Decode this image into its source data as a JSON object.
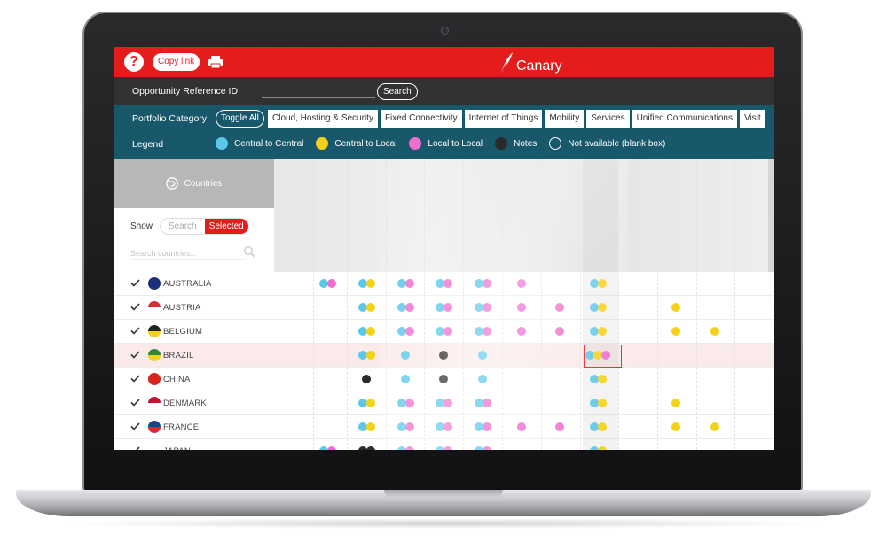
{
  "app": {
    "name": "Canary"
  },
  "toolbar": {
    "help_icon": "question-circle-icon",
    "copy_link_label": "Copy link",
    "print_icon": "printer-icon"
  },
  "reference": {
    "label": "Opportunity Reference ID",
    "value": "",
    "search_label": "Search"
  },
  "portfolio": {
    "label": "Portfolio Category",
    "toggle_all_label": "Toggle All",
    "tabs": [
      "Cloud, Hosting & Security",
      "Fixed Connectivity",
      "Internet of Things",
      "Mobility",
      "Services",
      "Unified Communications",
      "Visit"
    ]
  },
  "legend": {
    "label": "Legend",
    "items": [
      {
        "label": "Central to Central",
        "color": "#5bc8ea"
      },
      {
        "label": "Central to Local",
        "color": "#f5d21a"
      },
      {
        "label": "Local to Local",
        "color": "#ee6fcf"
      },
      {
        "label": "Notes",
        "color": "#2b2b2b"
      },
      {
        "label": "Not available (blank box)",
        "color": "transparent"
      }
    ]
  },
  "sidebar": {
    "header_label": "Countries",
    "globe_icon": "globe-icon",
    "show_label": "Show",
    "show_options": [
      "Search",
      "Selected"
    ],
    "show_selected": "Selected",
    "search_placeholder": "Search countries..."
  },
  "colors": {
    "brand": "#e51c1c",
    "dark_bar": "#323232",
    "teal_bar": "#19576b",
    "c": "#5bc8ea",
    "y": "#f5d21a",
    "p": "#ee6fcf",
    "n": "#2b2b2b"
  },
  "countries": [
    {
      "name": "AUSTRALIA",
      "checked": true
    },
    {
      "name": "AUSTRIA",
      "checked": true
    },
    {
      "name": "BELGIUM",
      "checked": true
    },
    {
      "name": "BRAZIL",
      "checked": true,
      "highlighted": true
    },
    {
      "name": "CHINA",
      "checked": true
    },
    {
      "name": "DENMARK",
      "checked": true
    },
    {
      "name": "FRANCE",
      "checked": true
    },
    {
      "name": "JAPAN",
      "checked": true
    }
  ],
  "matrix": [
    [
      "cp",
      "cy",
      "cp",
      "cp",
      "cp",
      "p",
      "",
      "cy",
      "",
      "",
      ""
    ],
    [
      "",
      "cy",
      "cp",
      "cp",
      "cp",
      "p",
      "p",
      "cy",
      "",
      "y",
      ""
    ],
    [
      "",
      "cy",
      "cp",
      "cp",
      "cp",
      "p",
      "p",
      "cy",
      "",
      "y",
      "y"
    ],
    [
      "",
      "cy",
      "c",
      "n",
      "c",
      "",
      "",
      "cyp",
      "",
      "",
      ""
    ],
    [
      "",
      "n",
      "c",
      "n",
      "c",
      "",
      "",
      "cy",
      "",
      "",
      ""
    ],
    [
      "",
      "cy",
      "cp",
      "cp",
      "cp",
      "",
      "",
      "cy",
      "",
      "y",
      ""
    ],
    [
      "",
      "cy",
      "cp",
      "cp",
      "cp",
      "p",
      "p",
      "cy",
      "",
      "y",
      "y"
    ],
    [
      "cp",
      "nn",
      "cp",
      "cp",
      "cp",
      "",
      "",
      "cy",
      "",
      "",
      ""
    ]
  ]
}
